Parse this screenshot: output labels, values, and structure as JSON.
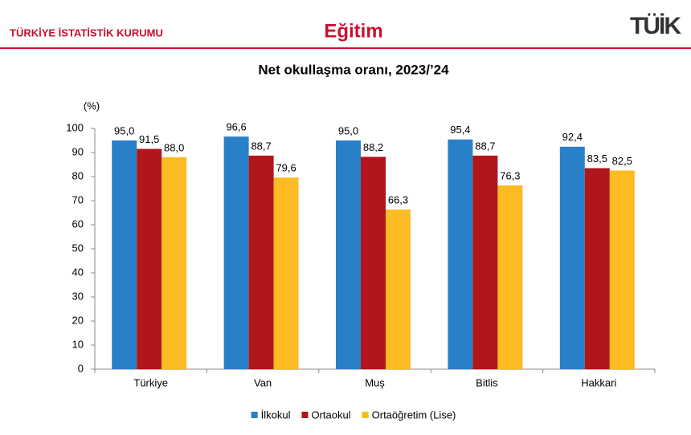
{
  "header": {
    "org": "TÜRKİYE İSTATİSTİK KURUMU",
    "title": "Eğitim",
    "logo": "TÜİK"
  },
  "chart_data": {
    "type": "bar",
    "title": "Net okullaşma oranı, 2023/’24",
    "y_label": "(%)",
    "categories": [
      "Türkiye",
      "Van",
      "Muş",
      "Bitlis",
      "Hakkari"
    ],
    "series": [
      {
        "name": "İlkokul",
        "color": "#2a7fc9",
        "values": [
          95.0,
          96.6,
          95.0,
          95.4,
          92.4
        ],
        "value_labels": [
          "95,0",
          "96,6",
          "95,0",
          "95,4",
          "92,4"
        ]
      },
      {
        "name": "Ortaokul",
        "color": "#b0161b",
        "values": [
          91.5,
          88.7,
          88.2,
          88.7,
          83.5
        ],
        "value_labels": [
          "91,5",
          "88,7",
          "88,2",
          "88,7",
          "83,5"
        ]
      },
      {
        "name": "Ortaöğretim (Lise)",
        "color": "#fbbb21",
        "values": [
          88.0,
          79.6,
          66.3,
          76.3,
          82.5
        ],
        "value_labels": [
          "88,0",
          "79,6",
          "66,3",
          "76,3",
          "82,5"
        ]
      }
    ],
    "ylim": [
      0,
      100
    ],
    "yticks": [
      0,
      10,
      20,
      30,
      40,
      50,
      60,
      70,
      80,
      90,
      100
    ],
    "grid": false,
    "legend": "bottom"
  }
}
